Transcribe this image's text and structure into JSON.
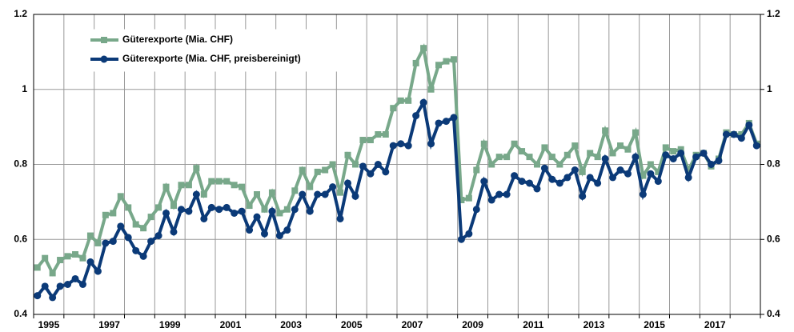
{
  "chart_data": {
    "type": "line",
    "x": [
      1995.125,
      1995.375,
      1995.625,
      1995.875,
      1996.125,
      1996.375,
      1996.625,
      1996.875,
      1997.125,
      1997.375,
      1997.625,
      1997.875,
      1998.125,
      1998.375,
      1998.625,
      1998.875,
      1999.125,
      1999.375,
      1999.625,
      1999.875,
      2000.125,
      2000.375,
      2000.625,
      2000.875,
      2001.125,
      2001.375,
      2001.625,
      2001.875,
      2002.125,
      2002.375,
      2002.625,
      2002.875,
      2003.125,
      2003.375,
      2003.625,
      2003.875,
      2004.125,
      2004.375,
      2004.625,
      2004.875,
      2005.125,
      2005.375,
      2005.625,
      2005.875,
      2006.125,
      2006.375,
      2006.625,
      2006.875,
      2007.125,
      2007.375,
      2007.625,
      2007.875,
      2008.125,
      2008.375,
      2008.625,
      2008.875,
      2009.125,
      2009.375,
      2009.625,
      2009.875,
      2010.125,
      2010.375,
      2010.625,
      2010.875,
      2011.125,
      2011.375,
      2011.625,
      2011.875,
      2012.125,
      2012.375,
      2012.625,
      2012.875,
      2013.125,
      2013.375,
      2013.625,
      2013.875,
      2014.125,
      2014.375,
      2014.625,
      2014.875,
      2015.125,
      2015.375,
      2015.625,
      2015.875,
      2016.125,
      2016.375,
      2016.625,
      2016.875,
      2017.125,
      2017.375,
      2017.625,
      2017.875,
      2018.125,
      2018.375,
      2018.625,
      2018.875
    ],
    "series": [
      {
        "name": "Güterexporte (Mia. CHF)",
        "color": "#78a88a",
        "marker": "square",
        "values": [
          0.525,
          0.55,
          0.51,
          0.545,
          0.555,
          0.56,
          0.55,
          0.61,
          0.59,
          0.665,
          0.67,
          0.715,
          0.685,
          0.64,
          0.63,
          0.66,
          0.685,
          0.74,
          0.69,
          0.745,
          0.745,
          0.79,
          0.72,
          0.755,
          0.755,
          0.755,
          0.745,
          0.74,
          0.69,
          0.72,
          0.68,
          0.725,
          0.67,
          0.68,
          0.73,
          0.785,
          0.74,
          0.78,
          0.785,
          0.8,
          0.725,
          0.825,
          0.8,
          0.865,
          0.865,
          0.88,
          0.88,
          0.95,
          0.97,
          0.97,
          1.07,
          1.11,
          1.0,
          1.065,
          1.075,
          1.08,
          0.705,
          0.71,
          0.785,
          0.855,
          0.8,
          0.82,
          0.82,
          0.855,
          0.835,
          0.82,
          0.8,
          0.845,
          0.82,
          0.8,
          0.825,
          0.85,
          0.78,
          0.83,
          0.82,
          0.89,
          0.83,
          0.85,
          0.84,
          0.885,
          0.77,
          0.8,
          0.78,
          0.845,
          0.835,
          0.84,
          0.785,
          0.825,
          0.83,
          0.795,
          0.815,
          0.885,
          0.88,
          0.88,
          0.91,
          0.855
        ]
      },
      {
        "name": "Güterexporte (Mia. CHF, preisbereinigt)",
        "color": "#0b3a78",
        "marker": "circle",
        "values": [
          0.45,
          0.475,
          0.445,
          0.475,
          0.48,
          0.495,
          0.48,
          0.54,
          0.515,
          0.59,
          0.595,
          0.635,
          0.605,
          0.57,
          0.555,
          0.595,
          0.61,
          0.67,
          0.62,
          0.68,
          0.675,
          0.72,
          0.655,
          0.685,
          0.68,
          0.685,
          0.67,
          0.675,
          0.625,
          0.66,
          0.615,
          0.675,
          0.61,
          0.625,
          0.68,
          0.72,
          0.675,
          0.72,
          0.72,
          0.74,
          0.655,
          0.75,
          0.715,
          0.795,
          0.775,
          0.8,
          0.78,
          0.85,
          0.855,
          0.85,
          0.93,
          0.965,
          0.855,
          0.91,
          0.915,
          0.925,
          0.6,
          0.615,
          0.68,
          0.755,
          0.705,
          0.72,
          0.72,
          0.77,
          0.755,
          0.75,
          0.735,
          0.79,
          0.76,
          0.75,
          0.765,
          0.785,
          0.715,
          0.765,
          0.75,
          0.815,
          0.765,
          0.785,
          0.775,
          0.82,
          0.72,
          0.775,
          0.755,
          0.825,
          0.815,
          0.83,
          0.765,
          0.82,
          0.83,
          0.8,
          0.81,
          0.88,
          0.88,
          0.87,
          0.905,
          0.85
        ]
      }
    ],
    "xlim": [
      1995,
      2019
    ],
    "xticks": [
      1995,
      1996,
      1997,
      1998,
      1999,
      2000,
      2001,
      2002,
      2003,
      2004,
      2005,
      2006,
      2007,
      2008,
      2009,
      2010,
      2011,
      2012,
      2013,
      2014,
      2015,
      2016,
      2017,
      2018,
      2019
    ],
    "year_labels": [
      1995,
      1997,
      1999,
      2001,
      2003,
      2005,
      2007,
      2009,
      2011,
      2013,
      2015,
      2017
    ],
    "ylim": [
      0.4,
      1.2
    ],
    "yticks": [
      0.4,
      0.6,
      0.8,
      1,
      1.2
    ],
    "y2lim": [
      0.4,
      1.2
    ],
    "y2ticks": [
      0.4,
      0.6,
      0.8,
      1,
      1.2
    ],
    "grid": true
  }
}
